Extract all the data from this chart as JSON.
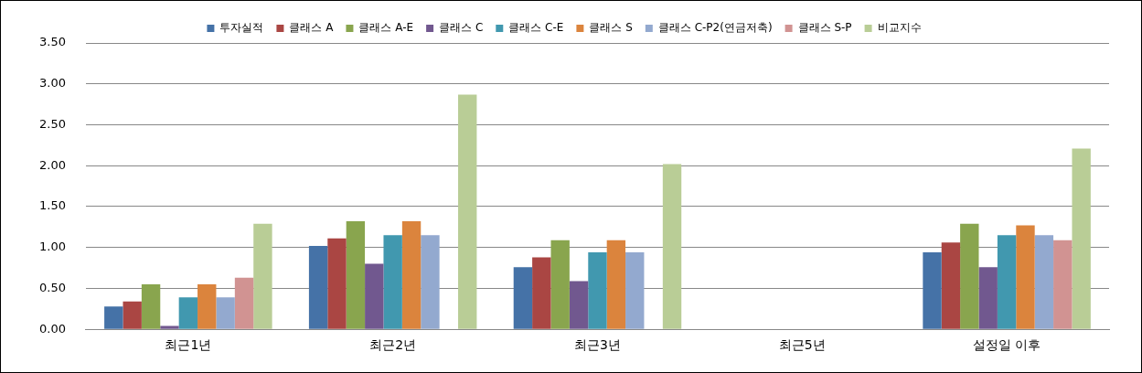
{
  "chart_data": {
    "type": "bar",
    "categories": [
      "최근1년",
      "최근2년",
      "최근3년",
      "최근5년",
      "설정일 이후"
    ],
    "series": [
      {
        "name": "투자실적",
        "color": "#4572a7",
        "values": [
          0.28,
          1.02,
          0.76,
          null,
          0.94
        ]
      },
      {
        "name": "클래스 A",
        "color": "#aa4643",
        "values": [
          0.34,
          1.11,
          0.88,
          null,
          1.06
        ]
      },
      {
        "name": "클래스 A-E",
        "color": "#89a54e",
        "values": [
          0.55,
          1.32,
          1.09,
          null,
          1.29
        ]
      },
      {
        "name": "클래스 C",
        "color": "#71588f",
        "values": [
          0.04,
          0.8,
          0.59,
          null,
          0.76
        ]
      },
      {
        "name": "클래스 C-E",
        "color": "#4198af",
        "values": [
          0.39,
          1.15,
          0.94,
          null,
          1.15
        ]
      },
      {
        "name": "클래스 S",
        "color": "#db843d",
        "values": [
          0.55,
          1.32,
          1.09,
          null,
          1.27
        ]
      },
      {
        "name": "클래스 C-P2(연금저축)",
        "color": "#93a9cf",
        "values": [
          0.39,
          1.15,
          0.94,
          null,
          1.15
        ]
      },
      {
        "name": "클래스 S-P",
        "color": "#d19392",
        "values": [
          0.63,
          null,
          null,
          null,
          1.09
        ]
      },
      {
        "name": "비교지수",
        "color": "#b9cd96",
        "values": [
          1.29,
          2.87,
          2.02,
          null,
          2.21
        ]
      }
    ],
    "ylim": [
      0,
      3.5
    ],
    "yticks": [
      {
        "value": 0,
        "label": "0.00"
      },
      {
        "value": 0.5,
        "label": "0.50"
      },
      {
        "value": 1,
        "label": "1.00"
      },
      {
        "value": 1.5,
        "label": "1.50"
      },
      {
        "value": 2,
        "label": "2.00"
      },
      {
        "value": 2.5,
        "label": "2.50"
      },
      {
        "value": 3,
        "label": "3.00"
      },
      {
        "value": 3.5,
        "label": "3.50"
      }
    ],
    "grid": "y",
    "legend": "top"
  }
}
